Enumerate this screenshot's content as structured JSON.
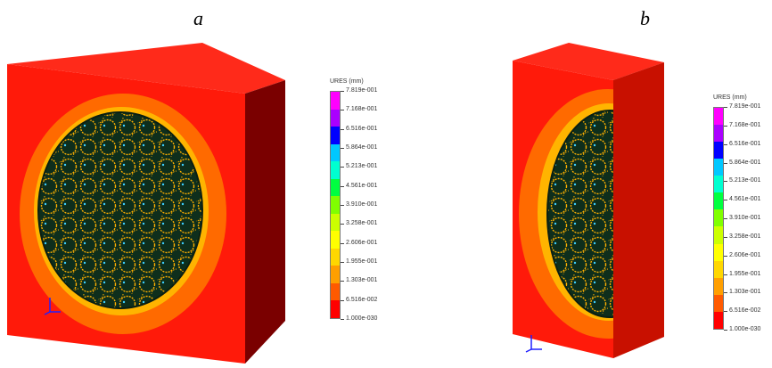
{
  "panels": [
    {
      "label": "a"
    },
    {
      "label": "b"
    }
  ],
  "legend": {
    "title": "URES (mm)",
    "ticks": [
      "7.819e-001",
      "7.168e-001",
      "6.516e-001",
      "5.864e-001",
      "5.213e-001",
      "4.561e-001",
      "3.910e-001",
      "3.258e-001",
      "2.606e-001",
      "1.955e-001",
      "1.303e-001",
      "6.516e-002",
      "1.000e-030"
    ],
    "colors": [
      "#ff00ff",
      "#aa00ff",
      "#0000ff",
      "#00c8ff",
      "#00ffd0",
      "#00ff40",
      "#80ff00",
      "#ccff00",
      "#ffff00",
      "#ffd700",
      "#ff9f00",
      "#ff5a00",
      "#ff0000"
    ]
  },
  "model_colors": {
    "face": "#ff1a0a",
    "side": "#8b0000",
    "top": "#ff2a1a",
    "orange_band": "#ff6a00",
    "yellow_band": "#ffb400",
    "core": "#0e2e1c",
    "fiber": "#ffb000"
  }
}
